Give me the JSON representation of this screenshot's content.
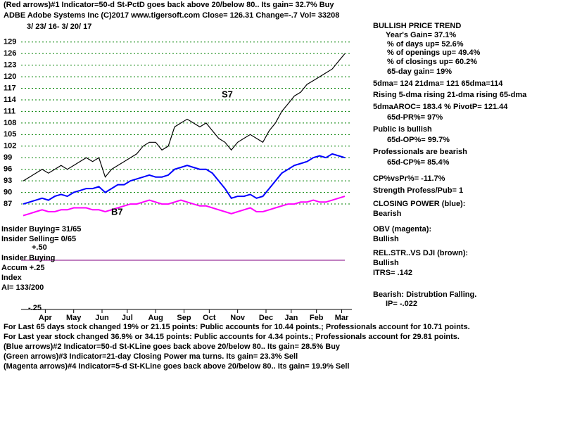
{
  "header": {
    "lines": [
      "(Red arrows)#1 Indicator=50-d St-PctD goes back above 20/below 80.. Its gain= 32.7% Buy",
      "ADBE   Adobe Systems Inc  (C)2017 www.tigersoft.com    Close=   126.31   Change=-.7 Vol= 33208",
      "3/ 23/ 16- 3/ 20/ 17"
    ]
  },
  "chart_data": {
    "type": "line",
    "annotations": [
      "S7",
      "B7"
    ],
    "xlim": [
      0,
      51
    ],
    "xticks": [
      {
        "value": 3.5,
        "label": "Apr"
      },
      {
        "value": 8,
        "label": "May"
      },
      {
        "value": 12.5,
        "label": "Jun"
      },
      {
        "value": 16.5,
        "label": "Jul"
      },
      {
        "value": 21,
        "label": "Aug"
      },
      {
        "value": 25.5,
        "label": "Sep"
      },
      {
        "value": 29.5,
        "label": "Oct"
      },
      {
        "value": 34,
        "label": "Nov"
      },
      {
        "value": 38.5,
        "label": "Dec"
      },
      {
        "value": 42.5,
        "label": "Jan"
      },
      {
        "value": 46.5,
        "label": "Feb"
      },
      {
        "value": 50.5,
        "label": "Mar"
      }
    ],
    "ylim": [
      83,
      131.5
    ],
    "yticks": [
      87,
      90,
      93,
      96,
      99,
      102,
      105,
      108,
      111,
      114,
      117,
      120,
      123,
      126,
      129
    ],
    "grid": true,
    "series": [
      {
        "color": "#000000",
        "values": [
          93,
          94,
          95,
          96,
          95,
          96,
          97,
          96,
          97,
          98,
          99,
          98,
          99,
          94,
          96,
          97,
          98,
          99,
          100,
          102,
          103,
          103,
          101,
          102,
          107,
          108,
          109,
          108,
          107,
          108,
          106,
          104,
          103,
          101,
          103,
          104,
          105,
          104,
          103,
          106,
          108,
          111,
          113,
          115,
          116,
          118,
          119,
          120,
          121,
          122,
          124,
          126
        ]
      },
      {
        "color": "#0000ff",
        "values": [
          87,
          87.5,
          88,
          88.5,
          88,
          89,
          89.5,
          89,
          90,
          90.5,
          91,
          91,
          91.5,
          90,
          91,
          92,
          92,
          93,
          93.5,
          94,
          94.5,
          94,
          94,
          94.5,
          96,
          96.5,
          97,
          96.5,
          96,
          96,
          95,
          93,
          91,
          88.5,
          89,
          89,
          89.5,
          88.5,
          89,
          91,
          93,
          95,
          96,
          97,
          97.5,
          98,
          99,
          99.5,
          99,
          100,
          99.5,
          99
        ]
      },
      {
        "color": "#ff00ff",
        "values": [
          84,
          84.5,
          85,
          85.5,
          85,
          85,
          85.5,
          85.5,
          86,
          86,
          86,
          85.5,
          85.5,
          85,
          85.5,
          86,
          86.5,
          87,
          87,
          87.5,
          88,
          87.5,
          87,
          87,
          87.5,
          88,
          87.5,
          87,
          86.5,
          86.5,
          86,
          85.5,
          85,
          84.5,
          85,
          85.5,
          86,
          85,
          85,
          85.5,
          86,
          86.5,
          87,
          87,
          87.5,
          87.5,
          88,
          87.5,
          87.5,
          88,
          88.5,
          89
        ]
      }
    ]
  },
  "right_panel": {
    "lines": [
      "BULLISH PRICE TREND",
      "Year's Gain= 37.1%",
      "% of days up= 52.6%",
      "% of openings up= 49.4%",
      "% of closings up= 60.2%",
      "65-day gain= 19%",
      "5dma= 124 21dma= 121 65dma=114",
      "Rising 5-dma rising 21-dma rising 65-dma",
      "5dmaAROC= 183.4 %  PivotP= 121.44",
      "65d-PR%= 97%",
      "Public is bullish",
      "65d-OP%= 99.7%",
      "Professionals are bearish",
      "65d-CP%= 85.4%",
      "CP%vsPr%= -11.7%",
      "Strength Profess/Pub= 1",
      "CLOSING POWER (blue):",
      "Bearish",
      "OBV (magenta):",
      "Bullish",
      "REL.STR..VS DJI (brown):",
      "Bullish",
      "ITRS= .142",
      "Bearish: Distrubtion Falling.",
      "IP= -.022"
    ]
  },
  "lower_panel": {
    "lines": [
      "Insider Buying= 31/65",
      "Insider Selling= 0/65",
      "+.50",
      "Insider Buying",
      "Accum  +.25",
      "Index",
      "AI= 133/200",
      "-.25"
    ]
  },
  "footer": {
    "lines": [
      "For Last 65 days stock changed  19% or  21.15 points:  Public accounts for  10.44 points.;  Professionals account for  10.71 points.",
      "For Last year stock changed  36.9% or  34.15 points:  Public accounts for  4.34 points.;  Professionals account for  29.81 points.",
      "(Blue arrows)#2 Indicator=50-d St-KLine goes back above 20/below 80.. Its gain= 28.5% Buy",
      "(Green arrows)#3 Indicator=21-day Closing Power ma turns. Its gain= 23.3% Sell",
      "(Magenta arrows)#4 Indicator=5-d St-KLine goes back above 20/below 80.. Its gain= 19.9% Sell"
    ]
  }
}
